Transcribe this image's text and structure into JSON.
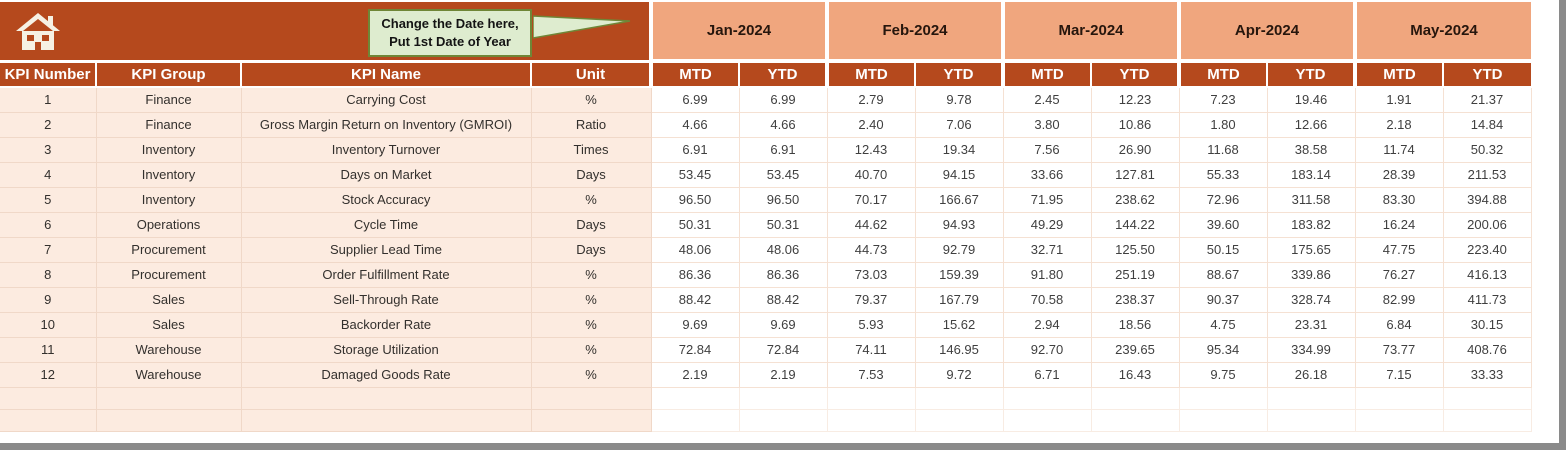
{
  "app": {
    "kind": "spreadsheet-kpi-dashboard"
  },
  "colors": {
    "header_rust": "#b5491d",
    "month_peach": "#f0a67e",
    "row_peach": "#fcebe0",
    "grid_line": "#f0d8c8",
    "callout_bg": "#deeccf",
    "callout_border": "#6f8637",
    "header_text": "#ffffff",
    "value_text": "#3f3f3f",
    "frame_gray": "#8a8a8a"
  },
  "header": {
    "home_icon": "home-icon",
    "callout": {
      "line1": "Change the Date here,",
      "line2": "Put 1st Date of Year"
    },
    "months": [
      "Jan-2024",
      "Feb-2024",
      "Mar-2024",
      "Apr-2024",
      "May-2024"
    ],
    "sub_headers": [
      "MTD",
      "YTD"
    ],
    "columns": [
      "KPI Number",
      "KPI Group",
      "KPI Name",
      "Unit"
    ]
  },
  "table": {
    "rows": [
      {
        "number": "1",
        "group": "Finance",
        "name": "Carrying Cost",
        "unit": "%",
        "values": [
          "6.99",
          "6.99",
          "2.79",
          "9.78",
          "2.45",
          "12.23",
          "7.23",
          "19.46",
          "1.91",
          "21.37"
        ]
      },
      {
        "number": "2",
        "group": "Finance",
        "name": "Gross Margin Return on Inventory (GMROI)",
        "unit": "Ratio",
        "values": [
          "4.66",
          "4.66",
          "2.40",
          "7.06",
          "3.80",
          "10.86",
          "1.80",
          "12.66",
          "2.18",
          "14.84"
        ]
      },
      {
        "number": "3",
        "group": "Inventory",
        "name": "Inventory Turnover",
        "unit": "Times",
        "values": [
          "6.91",
          "6.91",
          "12.43",
          "19.34",
          "7.56",
          "26.90",
          "11.68",
          "38.58",
          "11.74",
          "50.32"
        ]
      },
      {
        "number": "4",
        "group": "Inventory",
        "name": "Days on Market",
        "unit": "Days",
        "values": [
          "53.45",
          "53.45",
          "40.70",
          "94.15",
          "33.66",
          "127.81",
          "55.33",
          "183.14",
          "28.39",
          "211.53"
        ]
      },
      {
        "number": "5",
        "group": "Inventory",
        "name": "Stock Accuracy",
        "unit": "%",
        "values": [
          "96.50",
          "96.50",
          "70.17",
          "166.67",
          "71.95",
          "238.62",
          "72.96",
          "311.58",
          "83.30",
          "394.88"
        ]
      },
      {
        "number": "6",
        "group": "Operations",
        "name": "Cycle Time",
        "unit": "Days",
        "values": [
          "50.31",
          "50.31",
          "44.62",
          "94.93",
          "49.29",
          "144.22",
          "39.60",
          "183.82",
          "16.24",
          "200.06"
        ]
      },
      {
        "number": "7",
        "group": "Procurement",
        "name": "Supplier Lead Time",
        "unit": "Days",
        "values": [
          "48.06",
          "48.06",
          "44.73",
          "92.79",
          "32.71",
          "125.50",
          "50.15",
          "175.65",
          "47.75",
          "223.40"
        ]
      },
      {
        "number": "8",
        "group": "Procurement",
        "name": "Order Fulfillment Rate",
        "unit": "%",
        "values": [
          "86.36",
          "86.36",
          "73.03",
          "159.39",
          "91.80",
          "251.19",
          "88.67",
          "339.86",
          "76.27",
          "416.13"
        ]
      },
      {
        "number": "9",
        "group": "Sales",
        "name": "Sell-Through Rate",
        "unit": "%",
        "values": [
          "88.42",
          "88.42",
          "79.37",
          "167.79",
          "70.58",
          "238.37",
          "90.37",
          "328.74",
          "82.99",
          "411.73"
        ]
      },
      {
        "number": "10",
        "group": "Sales",
        "name": "Backorder Rate",
        "unit": "%",
        "values": [
          "9.69",
          "9.69",
          "5.93",
          "15.62",
          "2.94",
          "18.56",
          "4.75",
          "23.31",
          "6.84",
          "30.15"
        ]
      },
      {
        "number": "11",
        "group": "Warehouse",
        "name": "Storage Utilization",
        "unit": "%",
        "values": [
          "72.84",
          "72.84",
          "74.11",
          "146.95",
          "92.70",
          "239.65",
          "95.34",
          "334.99",
          "73.77",
          "408.76"
        ]
      },
      {
        "number": "12",
        "group": "Warehouse",
        "name": "Damaged Goods Rate",
        "unit": "%",
        "values": [
          "2.19",
          "2.19",
          "7.53",
          "9.72",
          "6.71",
          "16.43",
          "9.75",
          "26.18",
          "7.15",
          "33.33"
        ]
      }
    ],
    "empty_row_count": 2
  }
}
